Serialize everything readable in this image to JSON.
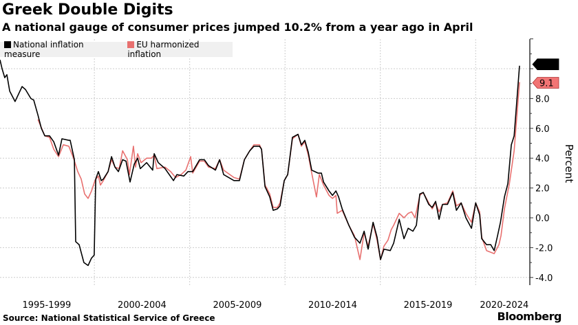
{
  "header": {
    "title": "Greek Double Digits",
    "subtitle": "A national gauge of consumer prices jumped 10.2% from a year ago in April"
  },
  "footer": {
    "source": "Source: National Statistical Service of Greece",
    "logo": "Bloomberg"
  },
  "chart_data": {
    "type": "line",
    "title": "Greek Double Digits",
    "ylabel": "Percent",
    "ylim": [
      -4.5,
      12
    ],
    "xlim": [
      1995.05,
      2022.3
    ],
    "yticks": [
      "-4.0",
      "-2.0",
      "0.0",
      "2.0",
      "4.0",
      "6.0",
      "8.0"
    ],
    "ytick_values": [
      -4,
      -2,
      0,
      2,
      4,
      6,
      8
    ],
    "grid_y": [
      -4,
      -2,
      0,
      2,
      4,
      6,
      8,
      10
    ],
    "xticks": [
      {
        "label": "1995-1999",
        "center": 1997.5
      },
      {
        "label": "2000-2004",
        "center": 2002.5
      },
      {
        "label": "2005-2009",
        "center": 2007.5
      },
      {
        "label": "2010-2014",
        "center": 2012.5
      },
      {
        "label": "2015-2019",
        "center": 2017.5
      },
      {
        "label": "2020-2024",
        "center": 2021.5
      }
    ],
    "grid_x": [
      2000,
      2005,
      2010,
      2015,
      2020
    ],
    "legend": "top-left",
    "series": [
      {
        "name": "National inflation measure",
        "color": "#000000",
        "last_label": "10.2",
        "points": [
          [
            1995.05,
            10.6
          ],
          [
            1995.16,
            10.0
          ],
          [
            1995.3,
            9.4
          ],
          [
            1995.41,
            9.6
          ],
          [
            1995.56,
            8.5
          ],
          [
            1995.84,
            7.8
          ],
          [
            1996.06,
            8.4
          ],
          [
            1996.21,
            8.8
          ],
          [
            1996.39,
            8.6
          ],
          [
            1996.67,
            8.0
          ],
          [
            1996.82,
            7.9
          ],
          [
            1997.04,
            6.9
          ],
          [
            1997.22,
            6.0
          ],
          [
            1997.4,
            5.5
          ],
          [
            1997.65,
            5.5
          ],
          [
            1997.87,
            5.1
          ],
          [
            1998.12,
            4.2
          ],
          [
            1998.3,
            5.3
          ],
          [
            1998.66,
            5.2
          ],
          [
            1998.73,
            5.2
          ],
          [
            1998.95,
            3.9
          ],
          [
            1999.02,
            -1.6
          ],
          [
            1999.2,
            -1.8
          ],
          [
            1999.45,
            -3.0
          ],
          [
            1999.67,
            -3.2
          ],
          [
            1999.85,
            -2.7
          ],
          [
            1999.99,
            -2.5
          ],
          [
            2000.07,
            2.6
          ],
          [
            2000.21,
            3.1
          ],
          [
            2000.36,
            2.5
          ],
          [
            2000.47,
            2.6
          ],
          [
            2000.72,
            3.1
          ],
          [
            2000.9,
            4.1
          ],
          [
            2001.08,
            3.4
          ],
          [
            2001.26,
            3.1
          ],
          [
            2001.48,
            3.9
          ],
          [
            2001.66,
            3.8
          ],
          [
            2001.87,
            2.4
          ],
          [
            2002.09,
            3.6
          ],
          [
            2002.27,
            4.0
          ],
          [
            2002.41,
            3.3
          ],
          [
            2002.74,
            3.7
          ],
          [
            2003.06,
            3.2
          ],
          [
            2003.14,
            4.3
          ],
          [
            2003.35,
            3.7
          ],
          [
            2003.71,
            3.3
          ],
          [
            2004.15,
            2.5
          ],
          [
            2004.33,
            2.9
          ],
          [
            2004.69,
            2.8
          ],
          [
            2004.91,
            3.1
          ],
          [
            2005.16,
            3.1
          ],
          [
            2005.52,
            3.9
          ],
          [
            2005.77,
            3.9
          ],
          [
            2005.99,
            3.5
          ],
          [
            2006.35,
            3.2
          ],
          [
            2006.57,
            3.9
          ],
          [
            2006.78,
            2.9
          ],
          [
            2007.32,
            2.5
          ],
          [
            2007.61,
            2.5
          ],
          [
            2007.87,
            3.9
          ],
          [
            2008.15,
            4.5
          ],
          [
            2008.37,
            4.8
          ],
          [
            2008.66,
            4.8
          ],
          [
            2008.77,
            4.6
          ],
          [
            2008.95,
            2.1
          ],
          [
            2009.2,
            1.4
          ],
          [
            2009.38,
            0.5
          ],
          [
            2009.6,
            0.6
          ],
          [
            2009.74,
            0.8
          ],
          [
            2009.96,
            2.5
          ],
          [
            2010.14,
            2.9
          ],
          [
            2010.39,
            5.4
          ],
          [
            2010.68,
            5.6
          ],
          [
            2010.86,
            4.9
          ],
          [
            2011.04,
            5.2
          ],
          [
            2011.22,
            4.4
          ],
          [
            2011.4,
            3.2
          ],
          [
            2011.73,
            3.0
          ],
          [
            2011.91,
            3.0
          ],
          [
            2012.02,
            2.4
          ],
          [
            2012.31,
            1.8
          ],
          [
            2012.49,
            1.5
          ],
          [
            2012.67,
            1.8
          ],
          [
            2012.81,
            1.4
          ],
          [
            2013.0,
            0.6
          ],
          [
            2013.35,
            -0.5
          ],
          [
            2013.64,
            -1.3
          ],
          [
            2013.93,
            -1.7
          ],
          [
            2014.15,
            -0.9
          ],
          [
            2014.36,
            -2.1
          ],
          [
            2014.62,
            -0.3
          ],
          [
            2014.83,
            -1.3
          ],
          [
            2015.01,
            -2.8
          ],
          [
            2015.19,
            -2.1
          ],
          [
            2015.52,
            -2.2
          ],
          [
            2015.7,
            -1.7
          ],
          [
            2015.99,
            -0.1
          ],
          [
            2016.24,
            -1.4
          ],
          [
            2016.46,
            -0.7
          ],
          [
            2016.71,
            -0.9
          ],
          [
            2016.89,
            -0.5
          ],
          [
            2017.07,
            1.6
          ],
          [
            2017.25,
            1.7
          ],
          [
            2017.54,
            0.9
          ],
          [
            2017.72,
            0.7
          ],
          [
            2017.9,
            1.1
          ],
          [
            2018.08,
            -0.1
          ],
          [
            2018.26,
            0.9
          ],
          [
            2018.52,
            0.9
          ],
          [
            2018.8,
            1.7
          ],
          [
            2018.99,
            0.5
          ],
          [
            2019.24,
            1.0
          ],
          [
            2019.49,
            0.0
          ],
          [
            2019.78,
            -0.7
          ],
          [
            2020.0,
            1.0
          ],
          [
            2020.21,
            0.2
          ],
          [
            2020.32,
            -1.4
          ],
          [
            2020.57,
            -1.8
          ],
          [
            2020.79,
            -1.8
          ],
          [
            2020.97,
            -2.2
          ],
          [
            2021.15,
            -1.2
          ],
          [
            2021.3,
            -0.3
          ],
          [
            2021.51,
            1.4
          ],
          [
            2021.69,
            2.3
          ],
          [
            2021.87,
            4.9
          ],
          [
            2022.02,
            5.5
          ],
          [
            2022.3,
            10.2
          ]
        ]
      },
      {
        "name": "EU harmonized inflation",
        "color": "#e8706f",
        "last_label": "9.1",
        "points": [
          [
            1997.04,
            6.6
          ],
          [
            1997.4,
            5.5
          ],
          [
            1997.65,
            5.4
          ],
          [
            1997.87,
            4.6
          ],
          [
            1998.12,
            4.1
          ],
          [
            1998.37,
            4.9
          ],
          [
            1998.66,
            4.8
          ],
          [
            1998.91,
            4.0
          ],
          [
            1999.13,
            3.1
          ],
          [
            1999.31,
            2.6
          ],
          [
            1999.49,
            1.6
          ],
          [
            1999.67,
            1.3
          ],
          [
            1999.85,
            1.8
          ],
          [
            2000.03,
            2.5
          ],
          [
            2000.21,
            2.8
          ],
          [
            2000.32,
            2.2
          ],
          [
            2000.47,
            2.5
          ],
          [
            2000.72,
            3.1
          ],
          [
            2000.9,
            3.9
          ],
          [
            2001.08,
            3.4
          ],
          [
            2001.3,
            3.3
          ],
          [
            2001.48,
            4.5
          ],
          [
            2001.73,
            3.9
          ],
          [
            2001.84,
            2.9
          ],
          [
            2002.05,
            4.8
          ],
          [
            2002.16,
            3.4
          ],
          [
            2002.27,
            4.3
          ],
          [
            2002.45,
            3.7
          ],
          [
            2002.74,
            4.0
          ],
          [
            2002.99,
            4.0
          ],
          [
            2003.14,
            4.2
          ],
          [
            2003.28,
            3.3
          ],
          [
            2003.71,
            3.4
          ],
          [
            2004.0,
            3.1
          ],
          [
            2004.26,
            2.7
          ],
          [
            2004.55,
            2.9
          ],
          [
            2004.8,
            3.2
          ],
          [
            2005.05,
            4.1
          ],
          [
            2005.16,
            3.0
          ],
          [
            2005.52,
            3.8
          ],
          [
            2005.77,
            3.8
          ],
          [
            2005.99,
            3.4
          ],
          [
            2006.35,
            3.3
          ],
          [
            2006.57,
            3.9
          ],
          [
            2006.78,
            3.2
          ],
          [
            2007.32,
            2.7
          ],
          [
            2007.61,
            2.6
          ],
          [
            2007.87,
            3.9
          ],
          [
            2008.15,
            4.5
          ],
          [
            2008.37,
            4.9
          ],
          [
            2008.66,
            4.9
          ],
          [
            2008.77,
            4.6
          ],
          [
            2008.95,
            2.2
          ],
          [
            2009.2,
            1.6
          ],
          [
            2009.38,
            0.7
          ],
          [
            2009.6,
            0.7
          ],
          [
            2009.74,
            1.0
          ],
          [
            2009.96,
            2.5
          ],
          [
            2010.14,
            2.9
          ],
          [
            2010.39,
            5.3
          ],
          [
            2010.68,
            5.6
          ],
          [
            2010.86,
            4.8
          ],
          [
            2011.04,
            5.1
          ],
          [
            2011.22,
            4.2
          ],
          [
            2011.4,
            3.0
          ],
          [
            2011.65,
            1.4
          ],
          [
            2011.8,
            2.9
          ],
          [
            2012.02,
            2.2
          ],
          [
            2012.31,
            1.5
          ],
          [
            2012.49,
            1.3
          ],
          [
            2012.67,
            1.5
          ],
          [
            2012.74,
            0.3
          ],
          [
            2013.0,
            0.5
          ],
          [
            2013.35,
            -0.5
          ],
          [
            2013.64,
            -1.2
          ],
          [
            2013.93,
            -2.8
          ],
          [
            2014.15,
            -1.0
          ],
          [
            2014.36,
            -1.9
          ],
          [
            2014.62,
            -0.4
          ],
          [
            2014.83,
            -1.5
          ],
          [
            2015.01,
            -2.8
          ],
          [
            2015.19,
            -1.9
          ],
          [
            2015.4,
            -1.5
          ],
          [
            2015.57,
            -0.8
          ],
          [
            2015.7,
            -0.5
          ],
          [
            2015.99,
            0.3
          ],
          [
            2016.24,
            0.0
          ],
          [
            2016.46,
            0.3
          ],
          [
            2016.64,
            0.4
          ],
          [
            2016.82,
            0.0
          ],
          [
            2017.07,
            1.5
          ],
          [
            2017.25,
            1.7
          ],
          [
            2017.54,
            1.0
          ],
          [
            2017.72,
            0.6
          ],
          [
            2017.9,
            1.0
          ],
          [
            2018.08,
            0.4
          ],
          [
            2018.26,
            0.9
          ],
          [
            2018.52,
            1.0
          ],
          [
            2018.8,
            1.8
          ],
          [
            2018.99,
            0.8
          ],
          [
            2019.24,
            1.0
          ],
          [
            2019.49,
            0.3
          ],
          [
            2019.78,
            -0.3
          ],
          [
            2020.0,
            1.0
          ],
          [
            2020.21,
            0.4
          ],
          [
            2020.32,
            -1.3
          ],
          [
            2020.57,
            -2.2
          ],
          [
            2020.97,
            -2.4
          ],
          [
            2021.22,
            -1.8
          ],
          [
            2021.33,
            -1.2
          ],
          [
            2021.51,
            0.6
          ],
          [
            2021.77,
            2.3
          ],
          [
            2022.02,
            4.5
          ],
          [
            2022.3,
            9.1
          ]
        ]
      }
    ]
  }
}
